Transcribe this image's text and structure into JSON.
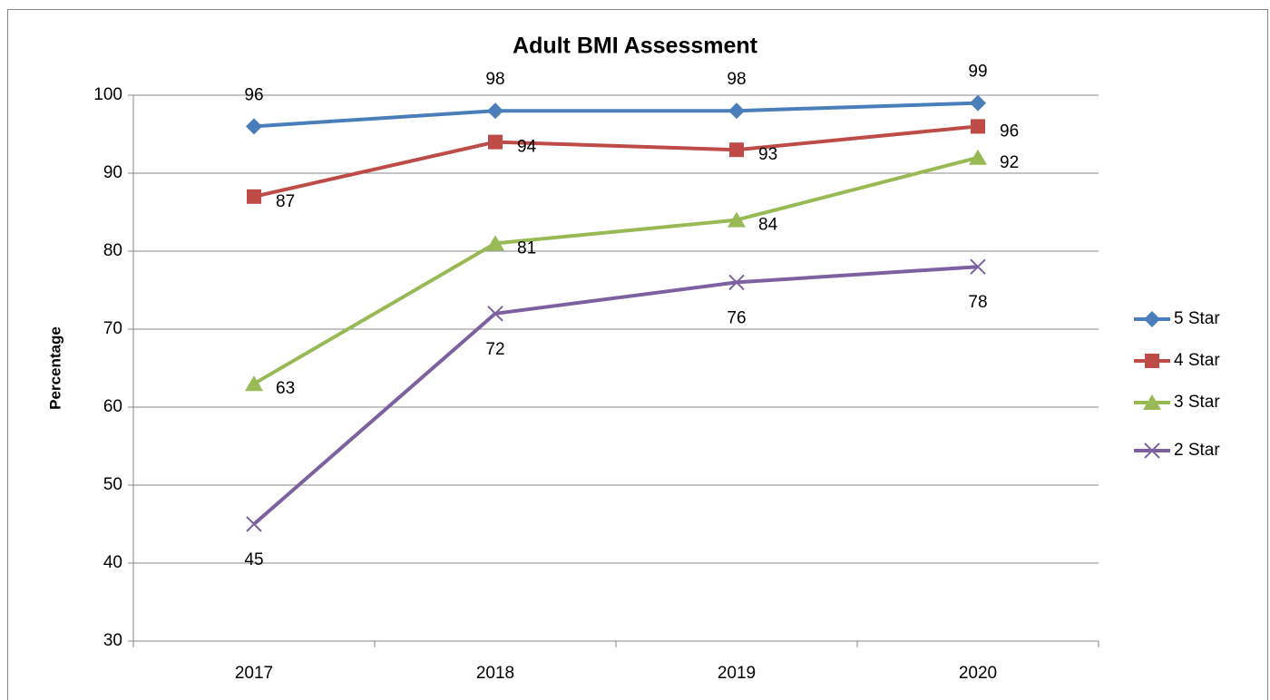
{
  "chart_data": {
    "type": "line",
    "title": "Adult BMI Assessment",
    "y_label": "Percentage",
    "categories": [
      "2017",
      "2018",
      "2019",
      "2020"
    ],
    "series": [
      {
        "name": "5 Star",
        "color": "#4a7ebb",
        "marker": "diamond",
        "values": [
          96,
          98,
          98,
          99
        ]
      },
      {
        "name": "4 Star",
        "color": "#be4b48",
        "marker": "square",
        "values": [
          87,
          94,
          93,
          96
        ]
      },
      {
        "name": "3 Star",
        "color": "#98b954",
        "marker": "triangle",
        "values": [
          63,
          81,
          84,
          92
        ]
      },
      {
        "name": "2 Star",
        "color": "#7d60a0",
        "marker": "x",
        "values": [
          45,
          72,
          76,
          78
        ]
      }
    ],
    "ylim": [
      30,
      100
    ],
    "yticks": [
      30,
      40,
      50,
      60,
      70,
      80,
      90,
      100
    ],
    "grid": true,
    "legend": "right"
  }
}
